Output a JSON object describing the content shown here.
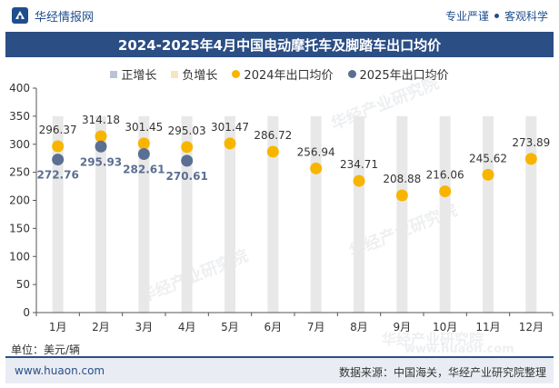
{
  "header": {
    "brand_name": "华经情报网",
    "tagline_1": "专业严谨",
    "tagline_2": "客观科学"
  },
  "title": "2024-2025年4月中国电动摩托车及脚踏车出口均价",
  "legend": [
    {
      "label": "正增长",
      "color": "#b8c4d6",
      "marker": "square"
    },
    {
      "label": "负增长",
      "color": "#f5e6c0",
      "marker": "square"
    },
    {
      "label": "2024年出口均价",
      "color": "#f7b500",
      "marker": "circle"
    },
    {
      "label": "2025年出口均价",
      "color": "#5b6f92",
      "marker": "circle"
    }
  ],
  "unit_label": "单位：美元/辆",
  "footer": {
    "website": "www.huaon.com",
    "source": "数据来源：中国海关，华经产业研究院整理"
  },
  "watermark": "华经产业研究院",
  "watermark_url": "www.huaon.com",
  "chart_data": {
    "type": "scatter",
    "categories": [
      "1月",
      "2月",
      "3月",
      "4月",
      "5月",
      "6月",
      "7月",
      "8月",
      "9月",
      "10月",
      "11月",
      "12月"
    ],
    "ylim": [
      0,
      400
    ],
    "yticks": [
      0,
      50,
      100,
      150,
      200,
      250,
      300,
      350,
      400
    ],
    "grid": false,
    "legend_position": "top",
    "series": [
      {
        "name": "2024年出口均价",
        "color": "#f7b500",
        "values": [
          296.37,
          314.18,
          301.45,
          295.03,
          301.47,
          286.72,
          256.94,
          234.71,
          208.88,
          216.06,
          245.62,
          273.89
        ]
      },
      {
        "name": "2025年出口均价",
        "color": "#5b6f92",
        "values": [
          272.76,
          295.93,
          282.61,
          270.61
        ]
      }
    ],
    "background_bar_value": 350,
    "background_bar_color": "#e8e8e8"
  }
}
